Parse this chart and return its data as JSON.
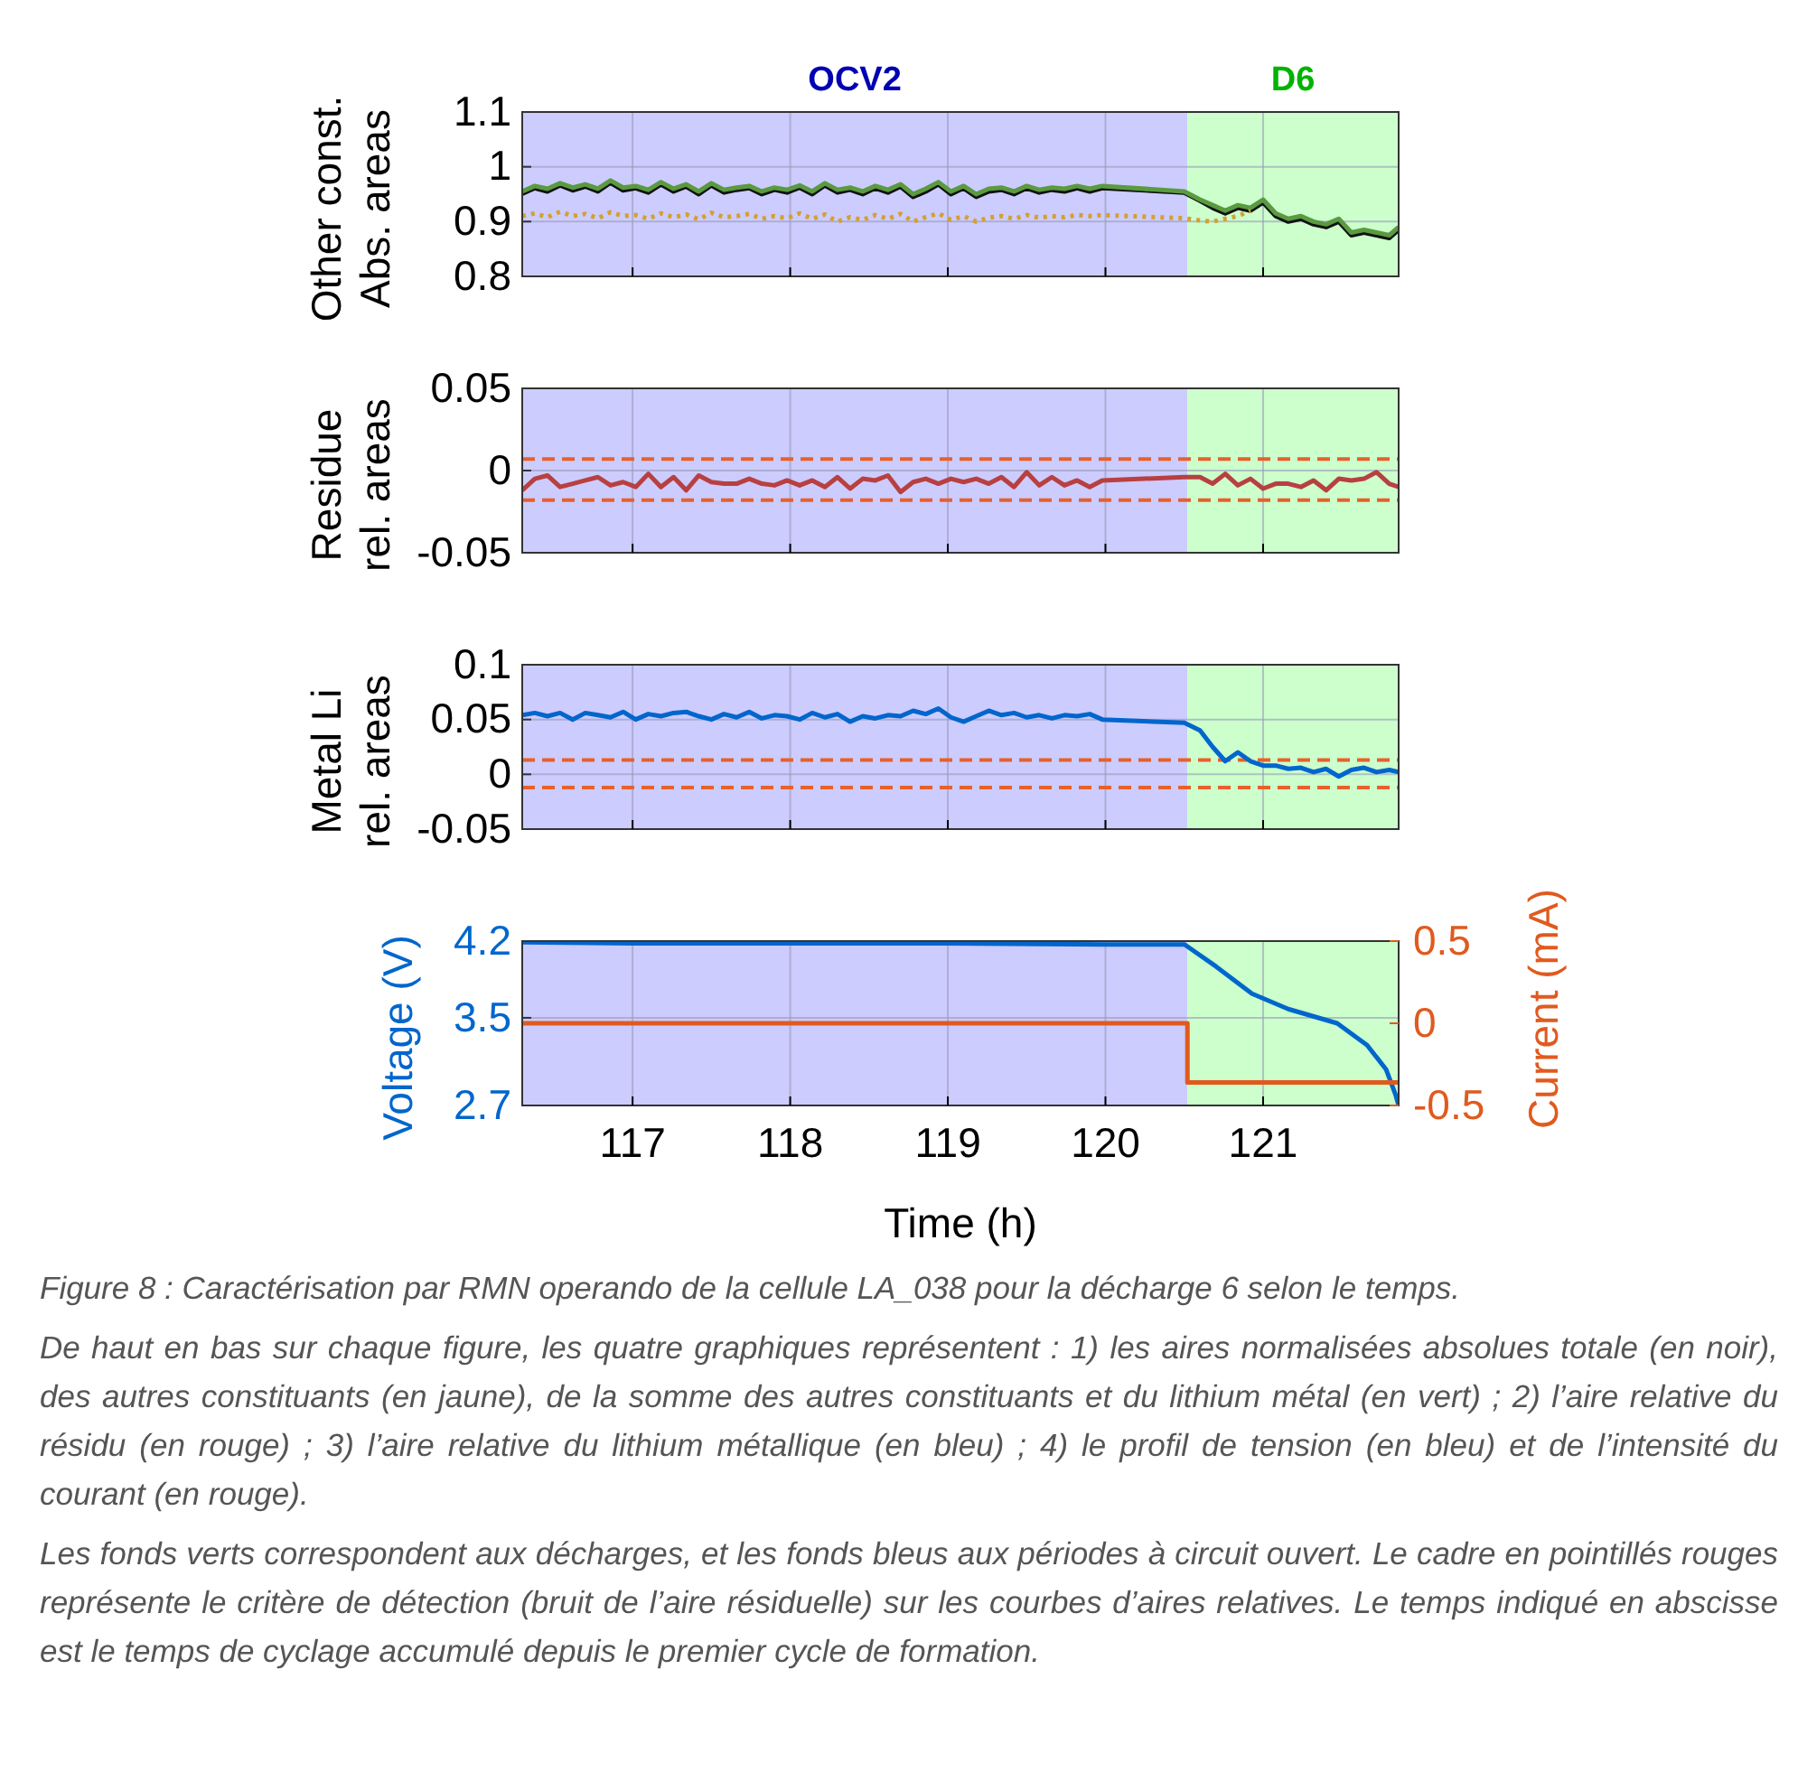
{
  "chart_data": [
    {
      "type": "line",
      "ylabel": "Other const.\nAbs. areas",
      "xlim": [
        116.3,
        121.86
      ],
      "xticks": [
        117,
        118,
        119,
        120,
        121
      ],
      "ylim": [
        0.8,
        1.1
      ],
      "yticks": [
        0.8,
        0.9,
        1,
        1.1
      ],
      "tick_labels": "y",
      "grid": true,
      "bands": [
        {
          "axis": "x",
          "from": 116.3,
          "to": 120.52,
          "label": "OCV2",
          "color": "#ccccff"
        },
        {
          "axis": "x",
          "from": 120.52,
          "to": 121.86,
          "label": "D6",
          "color": "#ccffcc"
        }
      ],
      "x": [
        116.3,
        116.38,
        116.46,
        116.54,
        116.62,
        116.7,
        116.78,
        116.86,
        116.94,
        117.02,
        117.1,
        117.18,
        117.26,
        117.34,
        117.42,
        117.5,
        117.58,
        117.66,
        117.74,
        117.82,
        117.9,
        117.98,
        118.06,
        118.14,
        118.22,
        118.3,
        118.38,
        118.46,
        118.54,
        118.62,
        118.7,
        118.78,
        118.86,
        118.94,
        119.02,
        119.1,
        119.18,
        119.26,
        119.34,
        119.42,
        119.5,
        119.58,
        119.66,
        119.74,
        119.82,
        119.9,
        119.98,
        120.5,
        120.6,
        120.68,
        120.76,
        120.84,
        120.92,
        121.0,
        121.08,
        121.16,
        121.24,
        121.32,
        121.4,
        121.48,
        121.56,
        121.64,
        121.72,
        121.8,
        121.86
      ],
      "series": [
        {
          "color": "#d4a030",
          "line_style": "dotted",
          "values": [
            0.91,
            0.915,
            0.908,
            0.918,
            0.91,
            0.914,
            0.906,
            0.917,
            0.91,
            0.912,
            0.905,
            0.915,
            0.908,
            0.913,
            0.904,
            0.916,
            0.908,
            0.91,
            0.914,
            0.905,
            0.91,
            0.906,
            0.915,
            0.905,
            0.913,
            0.9,
            0.908,
            0.903,
            0.912,
            0.905,
            0.914,
            0.9,
            0.908,
            0.915,
            0.903,
            0.91,
            0.9,
            0.907,
            0.91,
            0.905,
            0.912,
            0.907,
            0.91,
            0.908,
            0.912,
            0.91,
            0.912,
            0.906,
            0.902,
            0.9,
            0.905,
            0.91,
            0.92,
            null,
            null,
            null,
            null,
            null,
            null,
            null,
            null,
            null,
            null,
            null,
            null
          ]
        },
        {
          "color": "#111111",
          "values": [
            0.951,
            0.961,
            0.955,
            0.966,
            0.957,
            0.964,
            0.955,
            0.971,
            0.957,
            0.961,
            0.953,
            0.968,
            0.955,
            0.964,
            0.95,
            0.966,
            0.953,
            0.958,
            0.961,
            0.95,
            0.958,
            0.953,
            0.962,
            0.95,
            0.966,
            0.953,
            0.958,
            0.95,
            0.961,
            0.953,
            0.964,
            0.945,
            0.955,
            0.968,
            0.95,
            0.961,
            0.945,
            0.955,
            0.958,
            0.95,
            0.961,
            0.953,
            0.958,
            0.955,
            0.961,
            0.955,
            0.961,
            0.953,
            0.938,
            0.925,
            0.915,
            0.925,
            0.92,
            0.935,
            0.91,
            0.9,
            0.905,
            0.895,
            0.89,
            0.9,
            0.875,
            0.88,
            0.875,
            0.87,
            0.885
          ]
        },
        {
          "color": "#5a9a40",
          "values": [
            0.955,
            0.965,
            0.96,
            0.97,
            0.962,
            0.968,
            0.96,
            0.975,
            0.962,
            0.965,
            0.958,
            0.972,
            0.96,
            0.968,
            0.955,
            0.97,
            0.958,
            0.962,
            0.965,
            0.955,
            0.962,
            0.958,
            0.966,
            0.955,
            0.97,
            0.958,
            0.962,
            0.955,
            0.965,
            0.958,
            0.968,
            0.95,
            0.96,
            0.972,
            0.955,
            0.965,
            0.95,
            0.96,
            0.962,
            0.955,
            0.965,
            0.958,
            0.962,
            0.96,
            0.965,
            0.96,
            0.965,
            0.955,
            0.94,
            0.93,
            0.92,
            0.93,
            0.925,
            0.94,
            0.915,
            0.905,
            0.91,
            0.9,
            0.895,
            0.905,
            0.88,
            0.885,
            0.88,
            0.875,
            0.89
          ]
        }
      ]
    },
    {
      "type": "line",
      "ylabel": "Residue\nrel. areas",
      "xlim": [
        116.3,
        121.86
      ],
      "xticks": [
        117,
        118,
        119,
        120,
        121
      ],
      "ylim": [
        -0.05,
        0.05
      ],
      "yticks": [
        -0.05,
        0,
        0.05
      ],
      "tick_labels": "y",
      "grid": true,
      "bands": [
        {
          "axis": "x",
          "from": 116.3,
          "to": 120.52,
          "color": "#ccccff"
        },
        {
          "axis": "x",
          "from": 120.52,
          "to": 121.86,
          "color": "#ccffcc"
        }
      ],
      "ref_lines": [
        {
          "axis": "y",
          "value": 0.007,
          "color": "#e8602c",
          "line_style": "dashed"
        },
        {
          "axis": "y",
          "value": -0.018,
          "color": "#e8602c",
          "line_style": "dashed"
        }
      ],
      "x": [
        116.3,
        116.38,
        116.46,
        116.54,
        116.62,
        116.7,
        116.78,
        116.86,
        116.94,
        117.02,
        117.1,
        117.18,
        117.26,
        117.34,
        117.42,
        117.5,
        117.58,
        117.66,
        117.74,
        117.82,
        117.9,
        117.98,
        118.06,
        118.14,
        118.22,
        118.3,
        118.38,
        118.46,
        118.54,
        118.62,
        118.7,
        118.78,
        118.86,
        118.94,
        119.02,
        119.1,
        119.18,
        119.26,
        119.34,
        119.42,
        119.5,
        119.58,
        119.66,
        119.74,
        119.82,
        119.9,
        119.98,
        120.5,
        120.6,
        120.68,
        120.76,
        120.84,
        120.92,
        121.0,
        121.08,
        121.16,
        121.24,
        121.32,
        121.4,
        121.48,
        121.56,
        121.64,
        121.72,
        121.8,
        121.86
      ],
      "series": [
        {
          "color": "#b84040",
          "values": [
            -0.012,
            -0.005,
            -0.003,
            -0.01,
            -0.008,
            -0.006,
            -0.004,
            -0.009,
            -0.007,
            -0.01,
            -0.002,
            -0.01,
            -0.004,
            -0.012,
            -0.003,
            -0.007,
            -0.008,
            -0.008,
            -0.005,
            -0.008,
            -0.009,
            -0.006,
            -0.009,
            -0.006,
            -0.01,
            -0.004,
            -0.011,
            -0.005,
            -0.006,
            -0.003,
            -0.013,
            -0.007,
            -0.005,
            -0.008,
            -0.005,
            -0.007,
            -0.005,
            -0.008,
            -0.004,
            -0.01,
            -0.001,
            -0.009,
            -0.004,
            -0.009,
            -0.006,
            -0.01,
            -0.006,
            -0.004,
            -0.004,
            -0.008,
            -0.002,
            -0.009,
            -0.005,
            -0.011,
            -0.008,
            -0.008,
            -0.01,
            -0.006,
            -0.012,
            -0.005,
            -0.006,
            -0.005,
            -0.001,
            -0.008,
            -0.01
          ]
        }
      ]
    },
    {
      "type": "line",
      "ylabel": "Metal Li\nrel. areas",
      "xlim": [
        116.3,
        121.86
      ],
      "xticks": [
        117,
        118,
        119,
        120,
        121
      ],
      "ylim": [
        -0.05,
        0.1
      ],
      "yticks": [
        -0.05,
        0,
        0.05,
        0.1
      ],
      "tick_labels": "y",
      "grid": true,
      "bands": [
        {
          "axis": "x",
          "from": 116.3,
          "to": 120.52,
          "color": "#ccccff"
        },
        {
          "axis": "x",
          "from": 120.52,
          "to": 121.86,
          "color": "#ccffcc"
        }
      ],
      "ref_lines": [
        {
          "axis": "y",
          "value": 0.013,
          "color": "#e8602c",
          "line_style": "dashed"
        },
        {
          "axis": "y",
          "value": -0.012,
          "color": "#e8602c",
          "line_style": "dashed"
        }
      ],
      "x": [
        116.3,
        116.38,
        116.46,
        116.54,
        116.62,
        116.7,
        116.78,
        116.86,
        116.94,
        117.02,
        117.1,
        117.18,
        117.26,
        117.34,
        117.42,
        117.5,
        117.58,
        117.66,
        117.74,
        117.82,
        117.9,
        117.98,
        118.06,
        118.14,
        118.22,
        118.3,
        118.38,
        118.46,
        118.54,
        118.62,
        118.7,
        118.78,
        118.86,
        118.94,
        119.02,
        119.1,
        119.18,
        119.26,
        119.34,
        119.42,
        119.5,
        119.58,
        119.66,
        119.74,
        119.82,
        119.9,
        119.98,
        120.5,
        120.6,
        120.68,
        120.76,
        120.84,
        120.92,
        121.0,
        121.08,
        121.16,
        121.24,
        121.32,
        121.4,
        121.48,
        121.56,
        121.64,
        121.72,
        121.8,
        121.86
      ],
      "series": [
        {
          "color": "#0066cc",
          "values": [
            0.054,
            0.056,
            0.053,
            0.056,
            0.05,
            0.056,
            0.054,
            0.052,
            0.057,
            0.05,
            0.055,
            0.053,
            0.056,
            0.057,
            0.053,
            0.05,
            0.055,
            0.052,
            0.057,
            0.051,
            0.054,
            0.053,
            0.05,
            0.056,
            0.052,
            0.055,
            0.048,
            0.053,
            0.051,
            0.054,
            0.053,
            0.058,
            0.055,
            0.06,
            0.052,
            0.048,
            0.053,
            0.058,
            0.054,
            0.056,
            0.052,
            0.054,
            0.051,
            0.054,
            0.053,
            0.055,
            0.05,
            0.047,
            0.04,
            0.025,
            0.012,
            0.02,
            0.012,
            0.008,
            0.008,
            0.005,
            0.006,
            0.002,
            0.005,
            -0.002,
            0.004,
            0.006,
            0.002,
            0.004,
            0.002
          ]
        }
      ]
    },
    {
      "type": "line",
      "ylabel": "Voltage (V)",
      "y2label": "Current (mA)",
      "xlabel": "Time (h)",
      "xlim": [
        116.3,
        121.86
      ],
      "xticks": [
        117,
        118,
        119,
        120,
        121
      ],
      "ylim": [
        2.7,
        4.2
      ],
      "yticks": [
        2.7,
        3.5,
        4.2
      ],
      "y2lim": [
        -0.5,
        0.5
      ],
      "y2ticks": [
        -0.5,
        0,
        0.5
      ],
      "grid": true,
      "bands": [
        {
          "axis": "x",
          "from": 116.3,
          "to": 120.52,
          "color": "#ccccff"
        },
        {
          "axis": "x",
          "from": 120.52,
          "to": 121.86,
          "color": "#ccffcc"
        }
      ],
      "series": [
        {
          "color": "#0066cc",
          "x": [
            116.3,
            117,
            118,
            119,
            120,
            120.5,
            120.52,
            120.7,
            120.93,
            121.16,
            121.47,
            121.66,
            121.78,
            121.84,
            121.86
          ],
          "values": [
            4.19,
            4.18,
            4.18,
            4.18,
            4.17,
            4.17,
            4.15,
            3.97,
            3.72,
            3.58,
            3.45,
            3.25,
            3.03,
            2.8,
            2.7
          ]
        },
        {
          "type": "step",
          "axis": "y2",
          "color": "#e05a1e",
          "x": [
            116.3,
            120.52,
            121.86
          ],
          "values": [
            0,
            -0.36,
            -0.36
          ]
        }
      ],
      "annotations": [
        "Figure 8 : Caractérisation par RMN operando de la cellule LA_038 pour la décharge 6 selon le temps.",
        "De haut en bas sur chaque figure, les quatre graphiques représentent : 1) les aires normalisées absolues totale (en noir), des autres constituants (en jaune), de la somme des autres constituants et du lithium métal (en vert) ; 2) l’aire relative du résidu (en rouge) ; 3) l’aire relative du lithium métallique (en bleu) ; 4) le profil de tension (en bleu) et de l’intensité du courant (en rouge).",
        "Les fonds verts correspondent aux décharges, et les fonds bleus aux périodes à circuit ouvert. Le cadre en pointillés rouges représente le critère de détection (bruit de l’aire résiduelle) sur les courbes d’aires relatives. Le temps indiqué en abscisse est le temps de cyclage accumulé depuis le premier cycle de formation."
      ]
    }
  ]
}
